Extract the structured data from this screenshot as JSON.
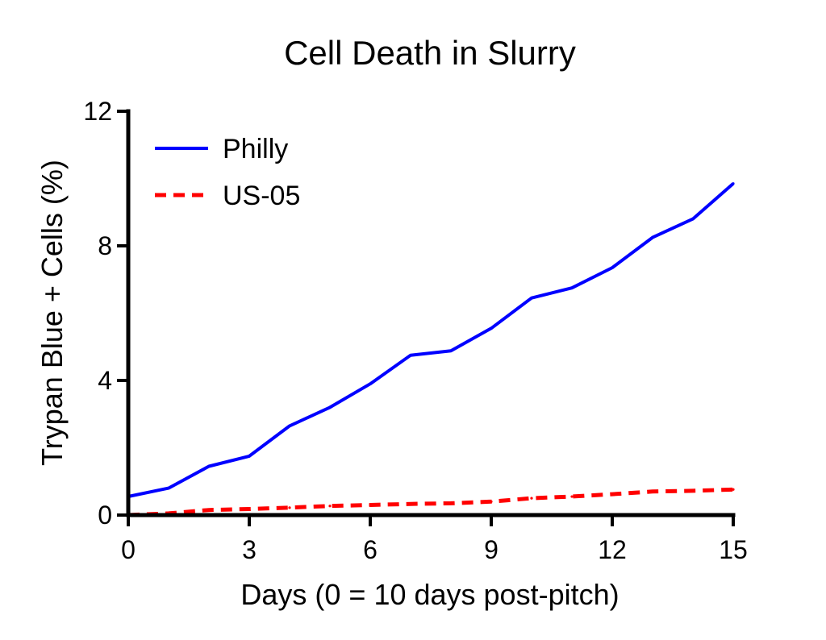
{
  "chart_data": {
    "type": "line",
    "title": "Cell Death in Slurry",
    "xlabel": "Days (0 = 10 days post-pitch)",
    "ylabel": "Trypan Blue +  Cells (%)",
    "xlim": [
      0,
      15
    ],
    "ylim": [
      0,
      12
    ],
    "xticks": [
      0,
      3,
      6,
      9,
      12,
      15
    ],
    "xtick_labels": [
      "0",
      "3",
      "6",
      "9",
      "12",
      "15"
    ],
    "yticks": [
      0,
      4,
      8,
      12
    ],
    "ytick_labels": [
      "0",
      "4",
      "8",
      "12"
    ],
    "grid": false,
    "legend_position": "top-left",
    "x": [
      0,
      1,
      2,
      3,
      4,
      5,
      6,
      7,
      8,
      9,
      10,
      11,
      12,
      13,
      14,
      15
    ],
    "series": [
      {
        "name": "Philly",
        "color": "#0000ff",
        "line_style": "solid",
        "values": [
          0.55,
          0.8,
          1.45,
          1.75,
          2.65,
          3.2,
          3.9,
          4.75,
          4.88,
          5.55,
          6.45,
          6.75,
          7.35,
          8.25,
          8.8,
          9.85
        ]
      },
      {
        "name": "US-05",
        "color": "#ff0000",
        "line_style": "dashed",
        "values": [
          0.0,
          0.05,
          0.15,
          0.18,
          0.22,
          0.27,
          0.3,
          0.33,
          0.35,
          0.4,
          0.5,
          0.55,
          0.62,
          0.7,
          0.72,
          0.76
        ]
      }
    ]
  }
}
